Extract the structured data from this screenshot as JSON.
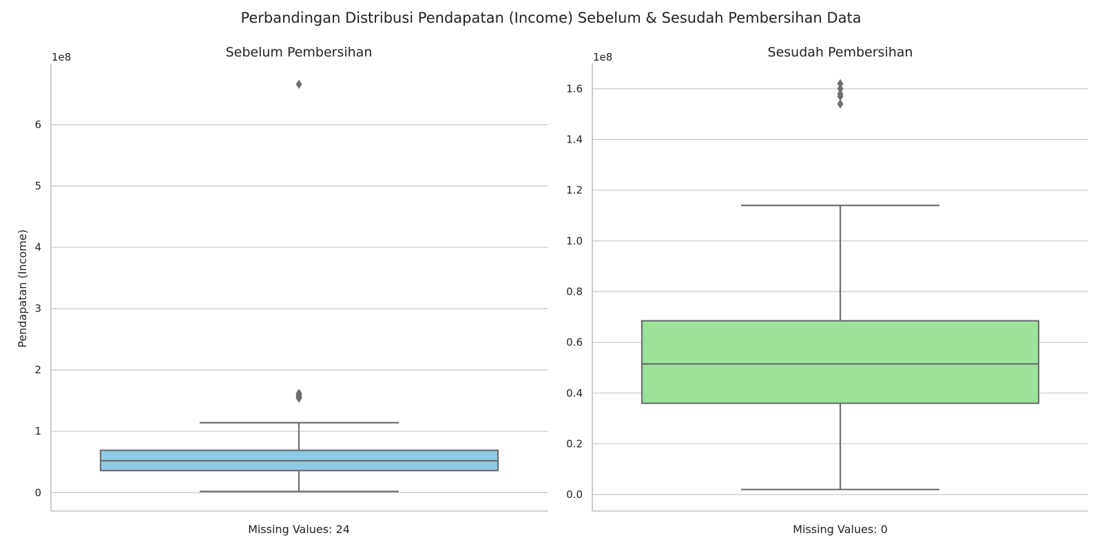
{
  "figure": {
    "title": "Perbandingan Distribusi Pendapatan (Income) Sebelum & Sesudah Pembersihan Data"
  },
  "colors": {
    "box_line": "#6e6e6e",
    "grid": "#cccccc",
    "spine": "#bfbfbf",
    "text": "#222222",
    "left_fill": "#8ecae6",
    "right_fill": "#9be39b"
  },
  "chart_data": [
    {
      "type": "box",
      "title": "Sebelum Pembersihan",
      "xlabel": "Missing Values: 24",
      "ylabel": "Pendapatan (Income)",
      "axis_multiplier": "1e8",
      "ylim": [
        -0.3,
        7.0
      ],
      "yticks": [
        0,
        1,
        2,
        3,
        4,
        5,
        6
      ],
      "ytick_labels": [
        "0",
        "1",
        "2",
        "3",
        "4",
        "5",
        "6"
      ],
      "grid": true,
      "fill_color": "#8ecae6",
      "box": {
        "whisker_low": 0.02,
        "q1": 0.36,
        "median": 0.52,
        "q3": 0.69,
        "whisker_high": 1.14
      },
      "outliers": [
        1.54,
        1.56,
        1.58,
        1.6,
        1.62,
        6.66
      ]
    },
    {
      "type": "box",
      "title": "Sesudah Pembersihan",
      "xlabel": "Missing Values: 0",
      "ylabel": "",
      "axis_multiplier": "1e8",
      "ylim": [
        -0.065,
        1.7
      ],
      "yticks": [
        0.0,
        0.2,
        0.4,
        0.6,
        0.8,
        1.0,
        1.2,
        1.4,
        1.6
      ],
      "ytick_labels": [
        "0.0",
        "0.2",
        "0.4",
        "0.6",
        "0.8",
        "1.0",
        "1.2",
        "1.4",
        "1.6"
      ],
      "grid": true,
      "fill_color": "#9be39b",
      "box": {
        "whisker_low": 0.02,
        "q1": 0.36,
        "median": 0.515,
        "q3": 0.685,
        "whisker_high": 1.14
      },
      "outliers": [
        1.54,
        1.57,
        1.58,
        1.6,
        1.62
      ]
    }
  ]
}
